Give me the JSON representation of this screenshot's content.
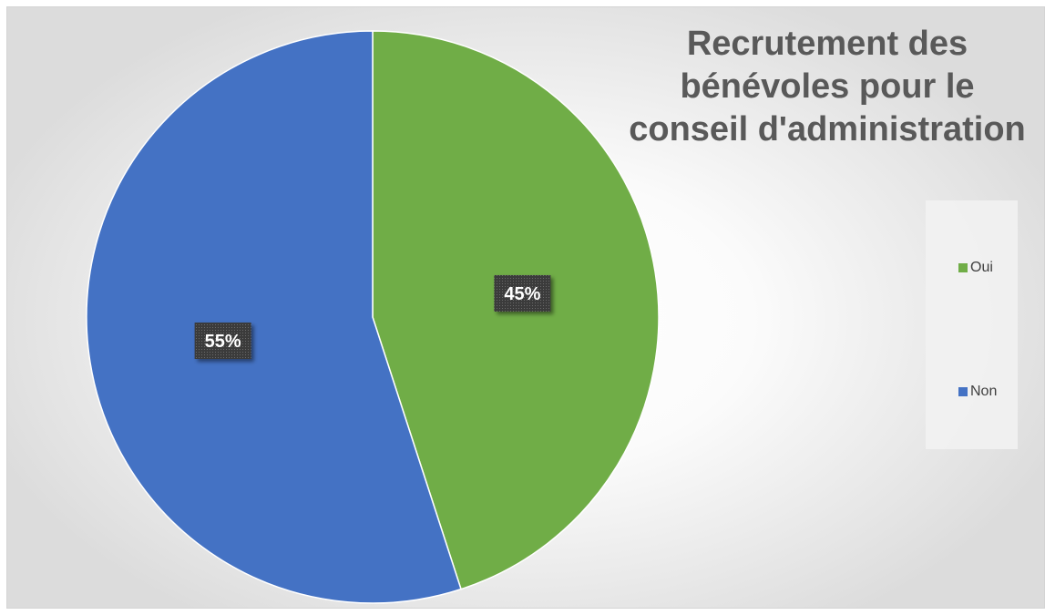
{
  "chart_data": {
    "type": "pie",
    "title": "Recrutement des\nbénévoles pour le\nconseil d'administration",
    "categories": [
      "Oui",
      "Non"
    ],
    "values": [
      45,
      55
    ],
    "data_labels": [
      "45%",
      "55%"
    ],
    "colors": [
      "#70ad47",
      "#4472c4"
    ],
    "legend": "right",
    "start_angle": "12 o'clock, clockwise"
  }
}
